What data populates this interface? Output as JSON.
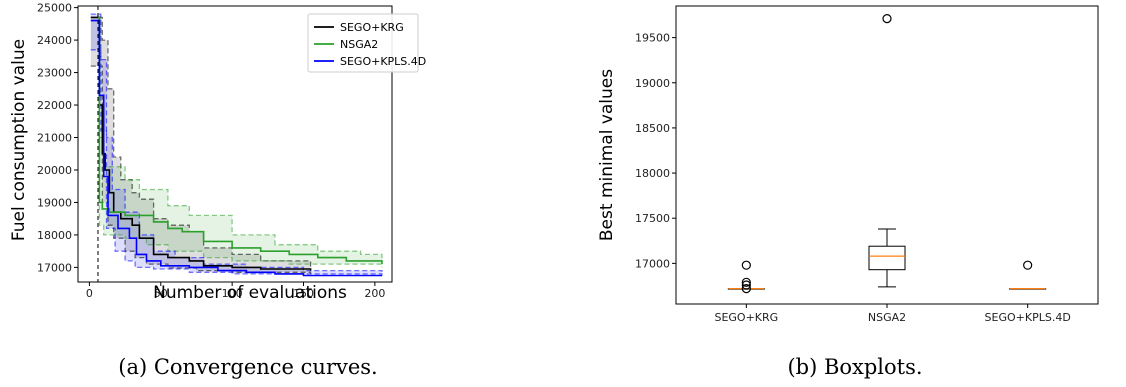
{
  "chart_data": [
    {
      "type": "line",
      "caption": "(a) Convergence curves.",
      "xlabel": "Number of evaluations",
      "ylabel": "Fuel consumption value",
      "xlim": [
        -8,
        212
      ],
      "ylim": [
        16550,
        25050
      ],
      "xticks": [
        0,
        50,
        100,
        150,
        200
      ],
      "yticks": [
        17000,
        18000,
        19000,
        20000,
        21000,
        22000,
        23000,
        24000,
        25000
      ],
      "vline_x": 6,
      "legend": "top-right",
      "series": [
        {
          "name": "SEGO+KRG",
          "color": "#000000",
          "mean": [
            [
              1,
              24700
            ],
            [
              6,
              24700
            ],
            [
              7,
              22000
            ],
            [
              9,
              20500
            ],
            [
              11,
              20000
            ],
            [
              14,
              19300
            ],
            [
              17,
              18700
            ],
            [
              22,
              18500
            ],
            [
              30,
              18300
            ],
            [
              35,
              17900
            ],
            [
              45,
              17400
            ],
            [
              55,
              17300
            ],
            [
              70,
              17200
            ],
            [
              80,
              17050
            ],
            [
              100,
              17000
            ],
            [
              120,
              16950
            ],
            [
              155,
              16900
            ]
          ],
          "upper": [
            [
              1,
              24700
            ],
            [
              6,
              24700
            ],
            [
              9,
              24000
            ],
            [
              13,
              22500
            ],
            [
              17,
              20400
            ],
            [
              22,
              19700
            ],
            [
              30,
              19300
            ],
            [
              35,
              19100
            ],
            [
              45,
              18500
            ],
            [
              55,
              18300
            ],
            [
              70,
              18100
            ],
            [
              80,
              17600
            ],
            [
              100,
              17400
            ],
            [
              120,
              17200
            ],
            [
              155,
              17000
            ]
          ],
          "lower": [
            [
              1,
              23200
            ],
            [
              6,
              23200
            ],
            [
              9,
              19000
            ],
            [
              13,
              18300
            ],
            [
              17,
              17900
            ],
            [
              25,
              17500
            ],
            [
              32,
              17300
            ],
            [
              40,
              17100
            ],
            [
              55,
              16980
            ],
            [
              75,
              16900
            ],
            [
              100,
              16850
            ],
            [
              155,
              16800
            ]
          ]
        },
        {
          "name": "NSGA2",
          "color": "#2ca02c",
          "mean": [
            [
              6,
              24700
            ],
            [
              7,
              19000
            ],
            [
              9,
              18800
            ],
            [
              14,
              18700
            ],
            [
              25,
              18600
            ],
            [
              45,
              18400
            ],
            [
              55,
              18200
            ],
            [
              65,
              18100
            ],
            [
              80,
              17800
            ],
            [
              100,
              17600
            ],
            [
              120,
              17500
            ],
            [
              140,
              17400
            ],
            [
              160,
              17300
            ],
            [
              180,
              17200
            ],
            [
              205,
              17100
            ]
          ],
          "upper": [
            [
              6,
              24700
            ],
            [
              7,
              21000
            ],
            [
              10,
              20100
            ],
            [
              25,
              19700
            ],
            [
              35,
              19400
            ],
            [
              55,
              18900
            ],
            [
              70,
              18600
            ],
            [
              100,
              18000
            ],
            [
              130,
              17700
            ],
            [
              160,
              17500
            ],
            [
              190,
              17400
            ],
            [
              205,
              17200
            ]
          ],
          "lower": [
            [
              6,
              23800
            ],
            [
              7,
              18300
            ],
            [
              10,
              18000
            ],
            [
              25,
              17900
            ],
            [
              40,
              17700
            ],
            [
              55,
              17500
            ],
            [
              80,
              17300
            ],
            [
              100,
              17200
            ],
            [
              140,
              17100
            ],
            [
              205,
              17000
            ]
          ]
        },
        {
          "name": "SEGO+KPLS.4D",
          "color": "#0000ff",
          "mean": [
            [
              1,
              24600
            ],
            [
              6,
              24600
            ],
            [
              7,
              22300
            ],
            [
              10,
              19800
            ],
            [
              13,
              18600
            ],
            [
              20,
              18200
            ],
            [
              28,
              17900
            ],
            [
              33,
              17400
            ],
            [
              40,
              17200
            ],
            [
              50,
              17050
            ],
            [
              70,
              17000
            ],
            [
              90,
              16900
            ],
            [
              110,
              16850
            ],
            [
              130,
              16800
            ],
            [
              150,
              16750
            ],
            [
              205,
              16750
            ]
          ],
          "upper": [
            [
              1,
              24800
            ],
            [
              6,
              24800
            ],
            [
              8,
              23400
            ],
            [
              12,
              21000
            ],
            [
              16,
              19400
            ],
            [
              25,
              18700
            ],
            [
              35,
              18000
            ],
            [
              45,
              17500
            ],
            [
              60,
              17300
            ],
            [
              80,
              17100
            ],
            [
              110,
              17000
            ],
            [
              150,
              16900
            ],
            [
              205,
              16850
            ]
          ],
          "lower": [
            [
              1,
              23700
            ],
            [
              6,
              23700
            ],
            [
              8,
              21200
            ],
            [
              12,
              18200
            ],
            [
              18,
              17500
            ],
            [
              25,
              17200
            ],
            [
              32,
              17000
            ],
            [
              45,
              16950
            ],
            [
              70,
              16850
            ],
            [
              100,
              16800
            ],
            [
              205,
              16700
            ]
          ]
        }
      ]
    },
    {
      "type": "box",
      "caption": "(b) Boxplots.",
      "ylabel": "Best minimal values",
      "ylim": [
        16550,
        19850
      ],
      "yticks": [
        17000,
        17500,
        18000,
        18500,
        19000,
        19500
      ],
      "categories": [
        "SEGO+KRG",
        "NSGA2",
        "SEGO+KPLS.4D"
      ],
      "boxes": [
        {
          "whisker_low": 16720,
          "q1": 16720,
          "median": 16720,
          "q3": 16720,
          "whisker_high": 16720,
          "outliers": [
            16720,
            16760,
            16790,
            16980
          ]
        },
        {
          "whisker_low": 16740,
          "q1": 16930,
          "median": 17080,
          "q3": 17190,
          "whisker_high": 17380,
          "outliers": [
            19710
          ]
        },
        {
          "whisker_low": 16720,
          "q1": 16720,
          "median": 16720,
          "q3": 16720,
          "whisker_high": 16720,
          "outliers": [
            16980
          ]
        }
      ],
      "colors": {
        "box": "#000000",
        "median": "#ff7f0e"
      }
    }
  ]
}
